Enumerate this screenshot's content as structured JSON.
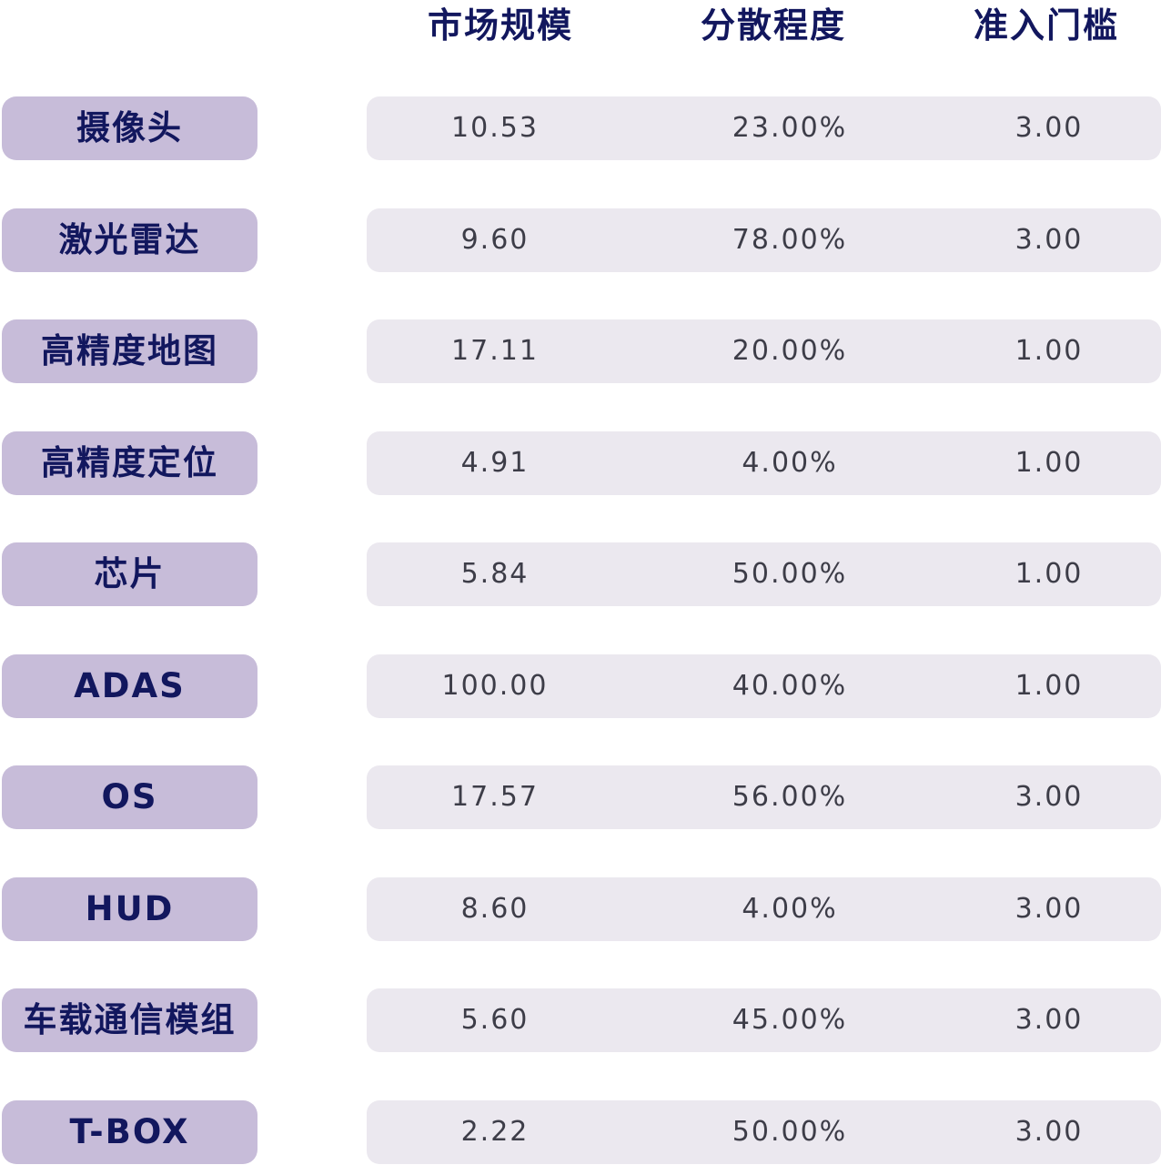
{
  "columns": [
    "市场规模",
    "分散程度",
    "准入门槛"
  ],
  "chart_data": {
    "type": "table",
    "columns": [
      "市场规模",
      "分散程度",
      "准入门槛"
    ],
    "rows": [
      {
        "label": "摄像头",
        "market_size": "10.53",
        "dispersion": "23.00%",
        "entry_barrier": "3.00"
      },
      {
        "label": "激光雷达",
        "market_size": "9.60",
        "dispersion": "78.00%",
        "entry_barrier": "3.00"
      },
      {
        "label": "高精度地图",
        "market_size": "17.11",
        "dispersion": "20.00%",
        "entry_barrier": "1.00"
      },
      {
        "label": "高精度定位",
        "market_size": "4.91",
        "dispersion": "4.00%",
        "entry_barrier": "1.00"
      },
      {
        "label": "芯片",
        "market_size": "5.84",
        "dispersion": "50.00%",
        "entry_barrier": "1.00"
      },
      {
        "label": "ADAS",
        "market_size": "100.00",
        "dispersion": "40.00%",
        "entry_barrier": "1.00"
      },
      {
        "label": "OS",
        "market_size": "17.57",
        "dispersion": "56.00%",
        "entry_barrier": "3.00"
      },
      {
        "label": "HUD",
        "market_size": "8.60",
        "dispersion": "4.00%",
        "entry_barrier": "3.00"
      },
      {
        "label": "车载通信模组",
        "market_size": "5.60",
        "dispersion": "45.00%",
        "entry_barrier": "3.00"
      },
      {
        "label": "T-BOX",
        "market_size": "2.22",
        "dispersion": "50.00%",
        "entry_barrier": "3.00"
      }
    ]
  },
  "colors": {
    "label_bg": "#c7bcd9",
    "band_bg": "#ebe8ef",
    "header_text": "#12175e",
    "value_text": "#3d3d48"
  }
}
